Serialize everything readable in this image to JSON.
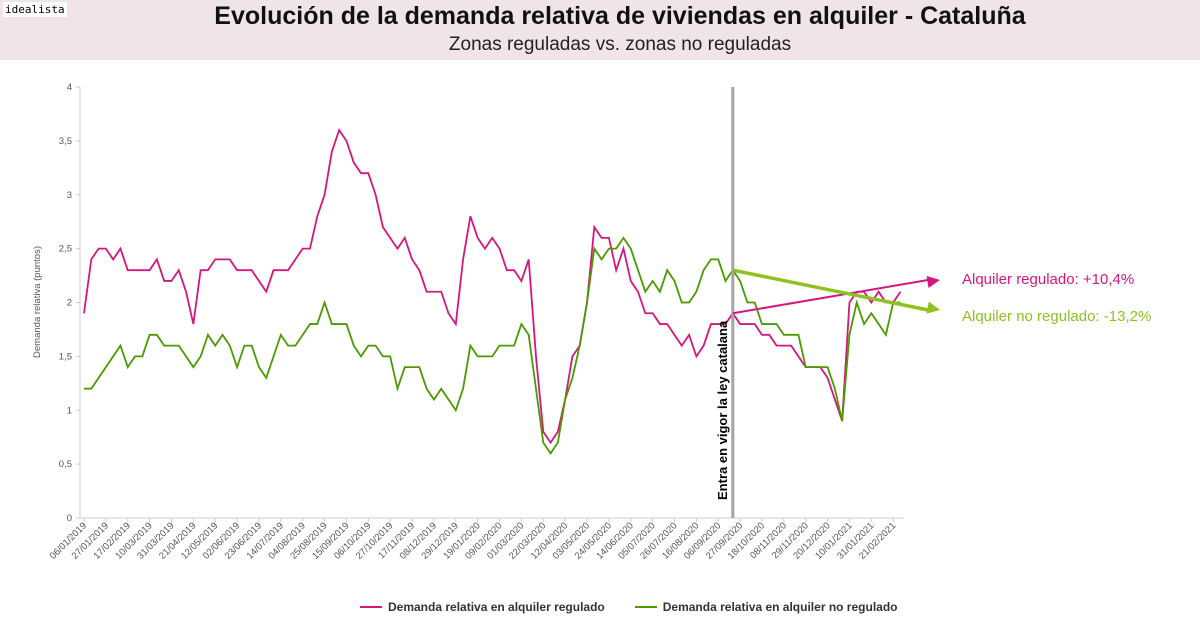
{
  "logo": "idealista",
  "title": "Evolución de la demanda relativa de viviendas en alquiler - Cataluña",
  "subtitle": "Zonas reguladas vs. zonas no reguladas",
  "chart_data": {
    "type": "line",
    "ylabel": "Demanda relativa (puntos)",
    "ylim": [
      0,
      4
    ],
    "yticks": [
      "0",
      "0,5",
      "1",
      "1,5",
      "2",
      "2,5",
      "3",
      "3,5",
      "4"
    ],
    "x_frequency": "weekly",
    "xticks": [
      "06/01/2019",
      "27/01/2019",
      "17/02/2019",
      "10/03/2019",
      "31/03/2019",
      "21/04/2019",
      "12/05/2019",
      "02/06/2019",
      "23/06/2019",
      "14/07/2019",
      "04/08/2019",
      "25/08/2019",
      "15/09/2019",
      "06/10/2019",
      "27/10/2019",
      "17/11/2019",
      "08/12/2019",
      "29/12/2019",
      "19/01/2020",
      "09/02/2020",
      "01/03/2020",
      "22/03/2020",
      "12/04/2020",
      "03/05/2020",
      "24/05/2020",
      "14/06/2020",
      "05/07/2020",
      "26/07/2020",
      "16/08/2020",
      "06/09/2020",
      "27/09/2020",
      "18/10/2020",
      "08/11/2020",
      "29/11/2020",
      "20/12/2020",
      "10/01/2021",
      "31/01/2021",
      "21/02/2021"
    ],
    "series": [
      {
        "name": "Demanda relativa en alquiler regulado",
        "color": "#d6167f",
        "values": [
          1.9,
          2.4,
          2.5,
          2.5,
          2.4,
          2.5,
          2.3,
          2.3,
          2.3,
          2.3,
          2.4,
          2.2,
          2.2,
          2.3,
          2.1,
          1.8,
          2.3,
          2.3,
          2.4,
          2.4,
          2.4,
          2.3,
          2.3,
          2.3,
          2.2,
          2.1,
          2.3,
          2.3,
          2.3,
          2.4,
          2.5,
          2.5,
          2.8,
          3.0,
          3.4,
          3.6,
          3.5,
          3.3,
          3.2,
          3.2,
          3.0,
          2.7,
          2.6,
          2.5,
          2.6,
          2.4,
          2.3,
          2.1,
          2.1,
          2.1,
          1.9,
          1.8,
          2.4,
          2.8,
          2.6,
          2.5,
          2.6,
          2.5,
          2.3,
          2.3,
          2.2,
          2.4,
          1.5,
          0.8,
          0.7,
          0.8,
          1.1,
          1.5,
          1.6,
          2.0,
          2.7,
          2.6,
          2.6,
          2.3,
          2.5,
          2.2,
          2.1,
          1.9,
          1.9,
          1.8,
          1.8,
          1.7,
          1.6,
          1.7,
          1.5,
          1.6,
          1.8,
          1.8,
          1.8,
          1.9,
          1.8,
          1.8,
          1.8,
          1.7,
          1.7,
          1.6,
          1.6,
          1.6,
          1.5,
          1.4,
          1.4,
          1.4,
          1.3,
          1.1,
          0.9,
          2.0,
          2.1,
          2.1,
          2.0,
          2.1,
          2.0,
          2.0,
          2.1
        ]
      },
      {
        "name": "Demanda relativa en alquiler no regulado",
        "color": "#4a9a00",
        "values": [
          1.2,
          1.2,
          1.3,
          1.4,
          1.5,
          1.6,
          1.4,
          1.5,
          1.5,
          1.7,
          1.7,
          1.6,
          1.6,
          1.6,
          1.5,
          1.4,
          1.5,
          1.7,
          1.6,
          1.7,
          1.6,
          1.4,
          1.6,
          1.6,
          1.4,
          1.3,
          1.5,
          1.7,
          1.6,
          1.6,
          1.7,
          1.8,
          1.8,
          2.0,
          1.8,
          1.8,
          1.8,
          1.6,
          1.5,
          1.6,
          1.6,
          1.5,
          1.5,
          1.2,
          1.4,
          1.4,
          1.4,
          1.2,
          1.1,
          1.2,
          1.1,
          1.0,
          1.2,
          1.6,
          1.5,
          1.5,
          1.5,
          1.6,
          1.6,
          1.6,
          1.8,
          1.7,
          1.2,
          0.7,
          0.6,
          0.7,
          1.1,
          1.3,
          1.6,
          2.0,
          2.5,
          2.4,
          2.5,
          2.5,
          2.6,
          2.5,
          2.3,
          2.1,
          2.2,
          2.1,
          2.3,
          2.2,
          2.0,
          2.0,
          2.1,
          2.3,
          2.4,
          2.4,
          2.2,
          2.3,
          2.2,
          2.0,
          2.0,
          1.8,
          1.8,
          1.8,
          1.7,
          1.7,
          1.7,
          1.4,
          1.4,
          1.4,
          1.4,
          1.2,
          0.9,
          1.7,
          2.0,
          1.8,
          1.9,
          1.8,
          1.7,
          2.0,
          2.0
        ]
      }
    ],
    "event_line": {
      "index": 89,
      "label": "Entra en vigor la ley catalana"
    },
    "annotations": [
      {
        "text": "Alquiler regulado: +10,4%",
        "color": "#d6167f"
      },
      {
        "text": "Alquiler no regulado: -13,2%",
        "color": "#8dc21f"
      }
    ],
    "legend_position": "bottom"
  }
}
